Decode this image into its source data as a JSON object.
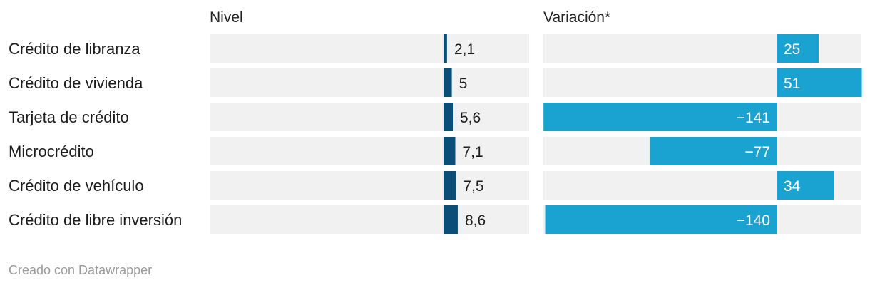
{
  "chart_data": {
    "type": "bar",
    "categories": [
      "Crédito de libranza",
      "Crédito de vivienda",
      "Tarjeta de crédito",
      "Microcrédito",
      "Crédito de vehículo",
      "Crédito de libre inversión"
    ],
    "series": [
      {
        "name": "Nivel",
        "values": [
          2.1,
          5,
          5.6,
          7.1,
          7.5,
          8.6
        ],
        "display": [
          "2,1",
          "5",
          "5,6",
          "7,1",
          "7,5",
          "8,6"
        ],
        "color": "#0b4f79"
      },
      {
        "name": "Variación*",
        "values": [
          25,
          51,
          -141,
          -77,
          34,
          -140
        ],
        "display": [
          "25",
          "51",
          "−141",
          "−77",
          "34",
          "−140"
        ],
        "color": "#1aa2d0"
      }
    ],
    "background_color": "#f1f1f1"
  },
  "footer": "Creado con Datawrapper"
}
